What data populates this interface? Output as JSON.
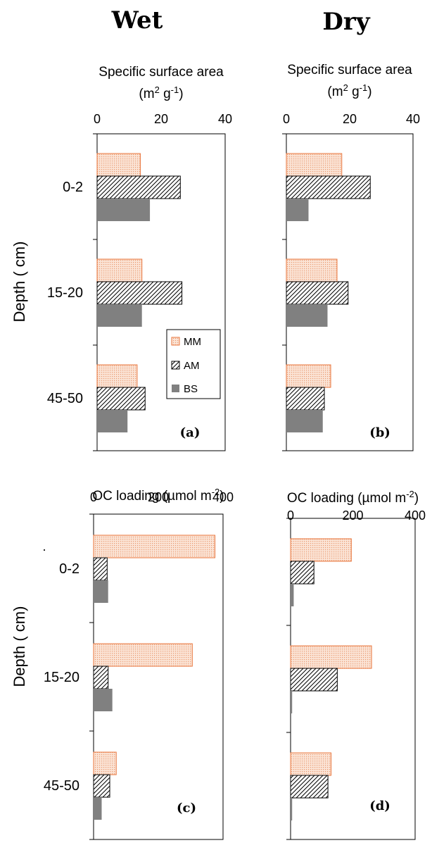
{
  "headers": {
    "wet": "Wet",
    "dry": "Dry"
  },
  "ylabel": "Depth ( cm)",
  "stray_mark": "·",
  "colors": {
    "MM_stroke": "#e8743b",
    "MM_fill": "#fbe2d4",
    "AM_stroke": "#000000",
    "BS_fill": "#808080"
  },
  "legend": {
    "items": [
      "MM",
      "AM",
      "BS"
    ]
  },
  "chart_data": [
    {
      "id": "a",
      "type": "bar",
      "orientation": "horizontal",
      "panel_label": "(a)",
      "title": "Specific surface area",
      "title_unit": {
        "base": "(m",
        "sup1": "2",
        "mid": " g",
        "sup2": "-1",
        "end": ")"
      },
      "xlim": [
        0,
        40
      ],
      "xticks": [
        "0",
        "20",
        "40"
      ],
      "categories": [
        "0-2",
        "15-20",
        "45-50"
      ],
      "series": [
        {
          "name": "MM",
          "values": [
            13.5,
            14,
            12.5
          ]
        },
        {
          "name": "AM",
          "values": [
            26,
            26.5,
            15
          ]
        },
        {
          "name": "BS",
          "values": [
            16.5,
            14,
            9.5
          ]
        }
      ]
    },
    {
      "id": "b",
      "type": "bar",
      "orientation": "horizontal",
      "panel_label": "(b)",
      "title": "Specific surface area",
      "title_unit": {
        "base": "(m",
        "sup1": "2",
        "mid": " g",
        "sup2": "-1",
        "end": ")"
      },
      "xlim": [
        0,
        40
      ],
      "xticks": [
        "0",
        "20",
        "40"
      ],
      "categories": [
        "0-2",
        "15-20",
        "45-50"
      ],
      "series": [
        {
          "name": "MM",
          "values": [
            17.5,
            16,
            14
          ]
        },
        {
          "name": "AM",
          "values": [
            26.5,
            19.5,
            12
          ]
        },
        {
          "name": "BS",
          "values": [
            7,
            13,
            11.5
          ]
        }
      ]
    },
    {
      "id": "c",
      "type": "bar",
      "orientation": "horizontal",
      "panel_label": "(c)",
      "title": "OC loading (µmol m",
      "title_sup": "-2",
      "title_end": ")",
      "xlim": [
        0,
        400
      ],
      "xticks": [
        "0",
        "200",
        "400"
      ],
      "categories": [
        "0-2",
        "15-20",
        "45-50"
      ],
      "series": [
        {
          "name": "MM",
          "values": [
            375,
            305,
            70
          ]
        },
        {
          "name": "AM",
          "values": [
            42,
            45,
            50
          ]
        },
        {
          "name": "BS",
          "values": [
            45,
            58,
            25
          ]
        }
      ]
    },
    {
      "id": "d",
      "type": "bar",
      "orientation": "horizontal",
      "panel_label": "(d)",
      "title": "OC loading (µmol m",
      "title_sup": "-2",
      "title_end": ")",
      "xlim": [
        0,
        400
      ],
      "xticks": [
        "0",
        "200",
        "400"
      ],
      "categories": [
        "0-2",
        "15-20",
        "45-50"
      ],
      "series": [
        {
          "name": "MM",
          "values": [
            195,
            260,
            130
          ]
        },
        {
          "name": "AM",
          "values": [
            75,
            150,
            120
          ]
        },
        {
          "name": "BS",
          "values": [
            10,
            5,
            5
          ]
        }
      ]
    }
  ]
}
